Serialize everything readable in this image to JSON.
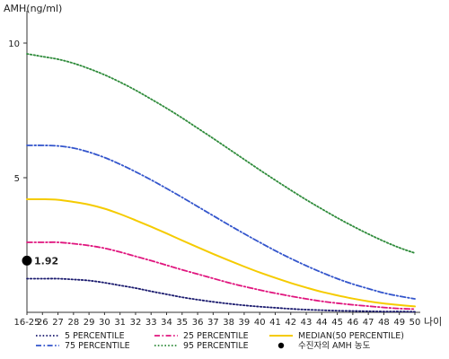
{
  "chart_data": {
    "type": "line",
    "ylabel": "AMH(ng/ml)",
    "xlabel": "나이",
    "ylim": [
      0,
      11
    ],
    "y_ticks": [
      5,
      10
    ],
    "x": [
      "16-25",
      "26",
      "27",
      "28",
      "29",
      "30",
      "31",
      "32",
      "33",
      "34",
      "35",
      "36",
      "37",
      "38",
      "39",
      "40",
      "41",
      "42",
      "43",
      "44",
      "45",
      "46",
      "47",
      "48",
      "49",
      "50"
    ],
    "series": [
      {
        "name": "5 PERCENTILE",
        "style": "dotted",
        "color": "#1a1a6e",
        "values": [
          1.25,
          1.25,
          1.25,
          1.22,
          1.18,
          1.1,
          1.0,
          0.9,
          0.78,
          0.67,
          0.56,
          0.47,
          0.39,
          0.32,
          0.26,
          0.21,
          0.17,
          0.13,
          0.1,
          0.08,
          0.06,
          0.05,
          0.04,
          0.03,
          0.03,
          0.02
        ]
      },
      {
        "name": "25 PERCENTILE",
        "style": "dashdot",
        "color": "#e0157e",
        "values": [
          2.6,
          2.6,
          2.6,
          2.55,
          2.48,
          2.38,
          2.24,
          2.08,
          1.92,
          1.75,
          1.58,
          1.42,
          1.26,
          1.1,
          0.96,
          0.83,
          0.71,
          0.6,
          0.5,
          0.41,
          0.34,
          0.28,
          0.23,
          0.18,
          0.14,
          0.12
        ]
      },
      {
        "name": "MEDIAN(50 PERCENTILE)",
        "style": "solid",
        "color": "#f5cb00",
        "values": [
          4.2,
          4.2,
          4.18,
          4.1,
          4.0,
          3.85,
          3.65,
          3.42,
          3.18,
          2.93,
          2.67,
          2.42,
          2.17,
          1.93,
          1.7,
          1.48,
          1.28,
          1.09,
          0.92,
          0.76,
          0.63,
          0.51,
          0.41,
          0.33,
          0.27,
          0.22
        ]
      },
      {
        "name": "75 PERCENTILE",
        "style": "dashdot",
        "color": "#3355cc",
        "values": [
          6.2,
          6.2,
          6.18,
          6.1,
          5.95,
          5.75,
          5.5,
          5.22,
          4.92,
          4.6,
          4.27,
          3.93,
          3.59,
          3.25,
          2.92,
          2.6,
          2.29,
          2.0,
          1.73,
          1.48,
          1.25,
          1.05,
          0.88,
          0.72,
          0.6,
          0.5
        ]
      },
      {
        "name": "95 PERCENTILE",
        "style": "dotted",
        "color": "#2e8b3a",
        "values": [
          9.6,
          9.5,
          9.4,
          9.25,
          9.05,
          8.82,
          8.55,
          8.25,
          7.92,
          7.58,
          7.22,
          6.84,
          6.46,
          6.07,
          5.68,
          5.29,
          4.91,
          4.54,
          4.18,
          3.84,
          3.51,
          3.2,
          2.91,
          2.64,
          2.4,
          2.2
        ]
      }
    ],
    "marker": {
      "name": "수진자의 AMH 농도",
      "x": "16-25",
      "y": 1.92,
      "label": "1.92",
      "color": "#000000"
    },
    "legend_position": "bottom"
  }
}
